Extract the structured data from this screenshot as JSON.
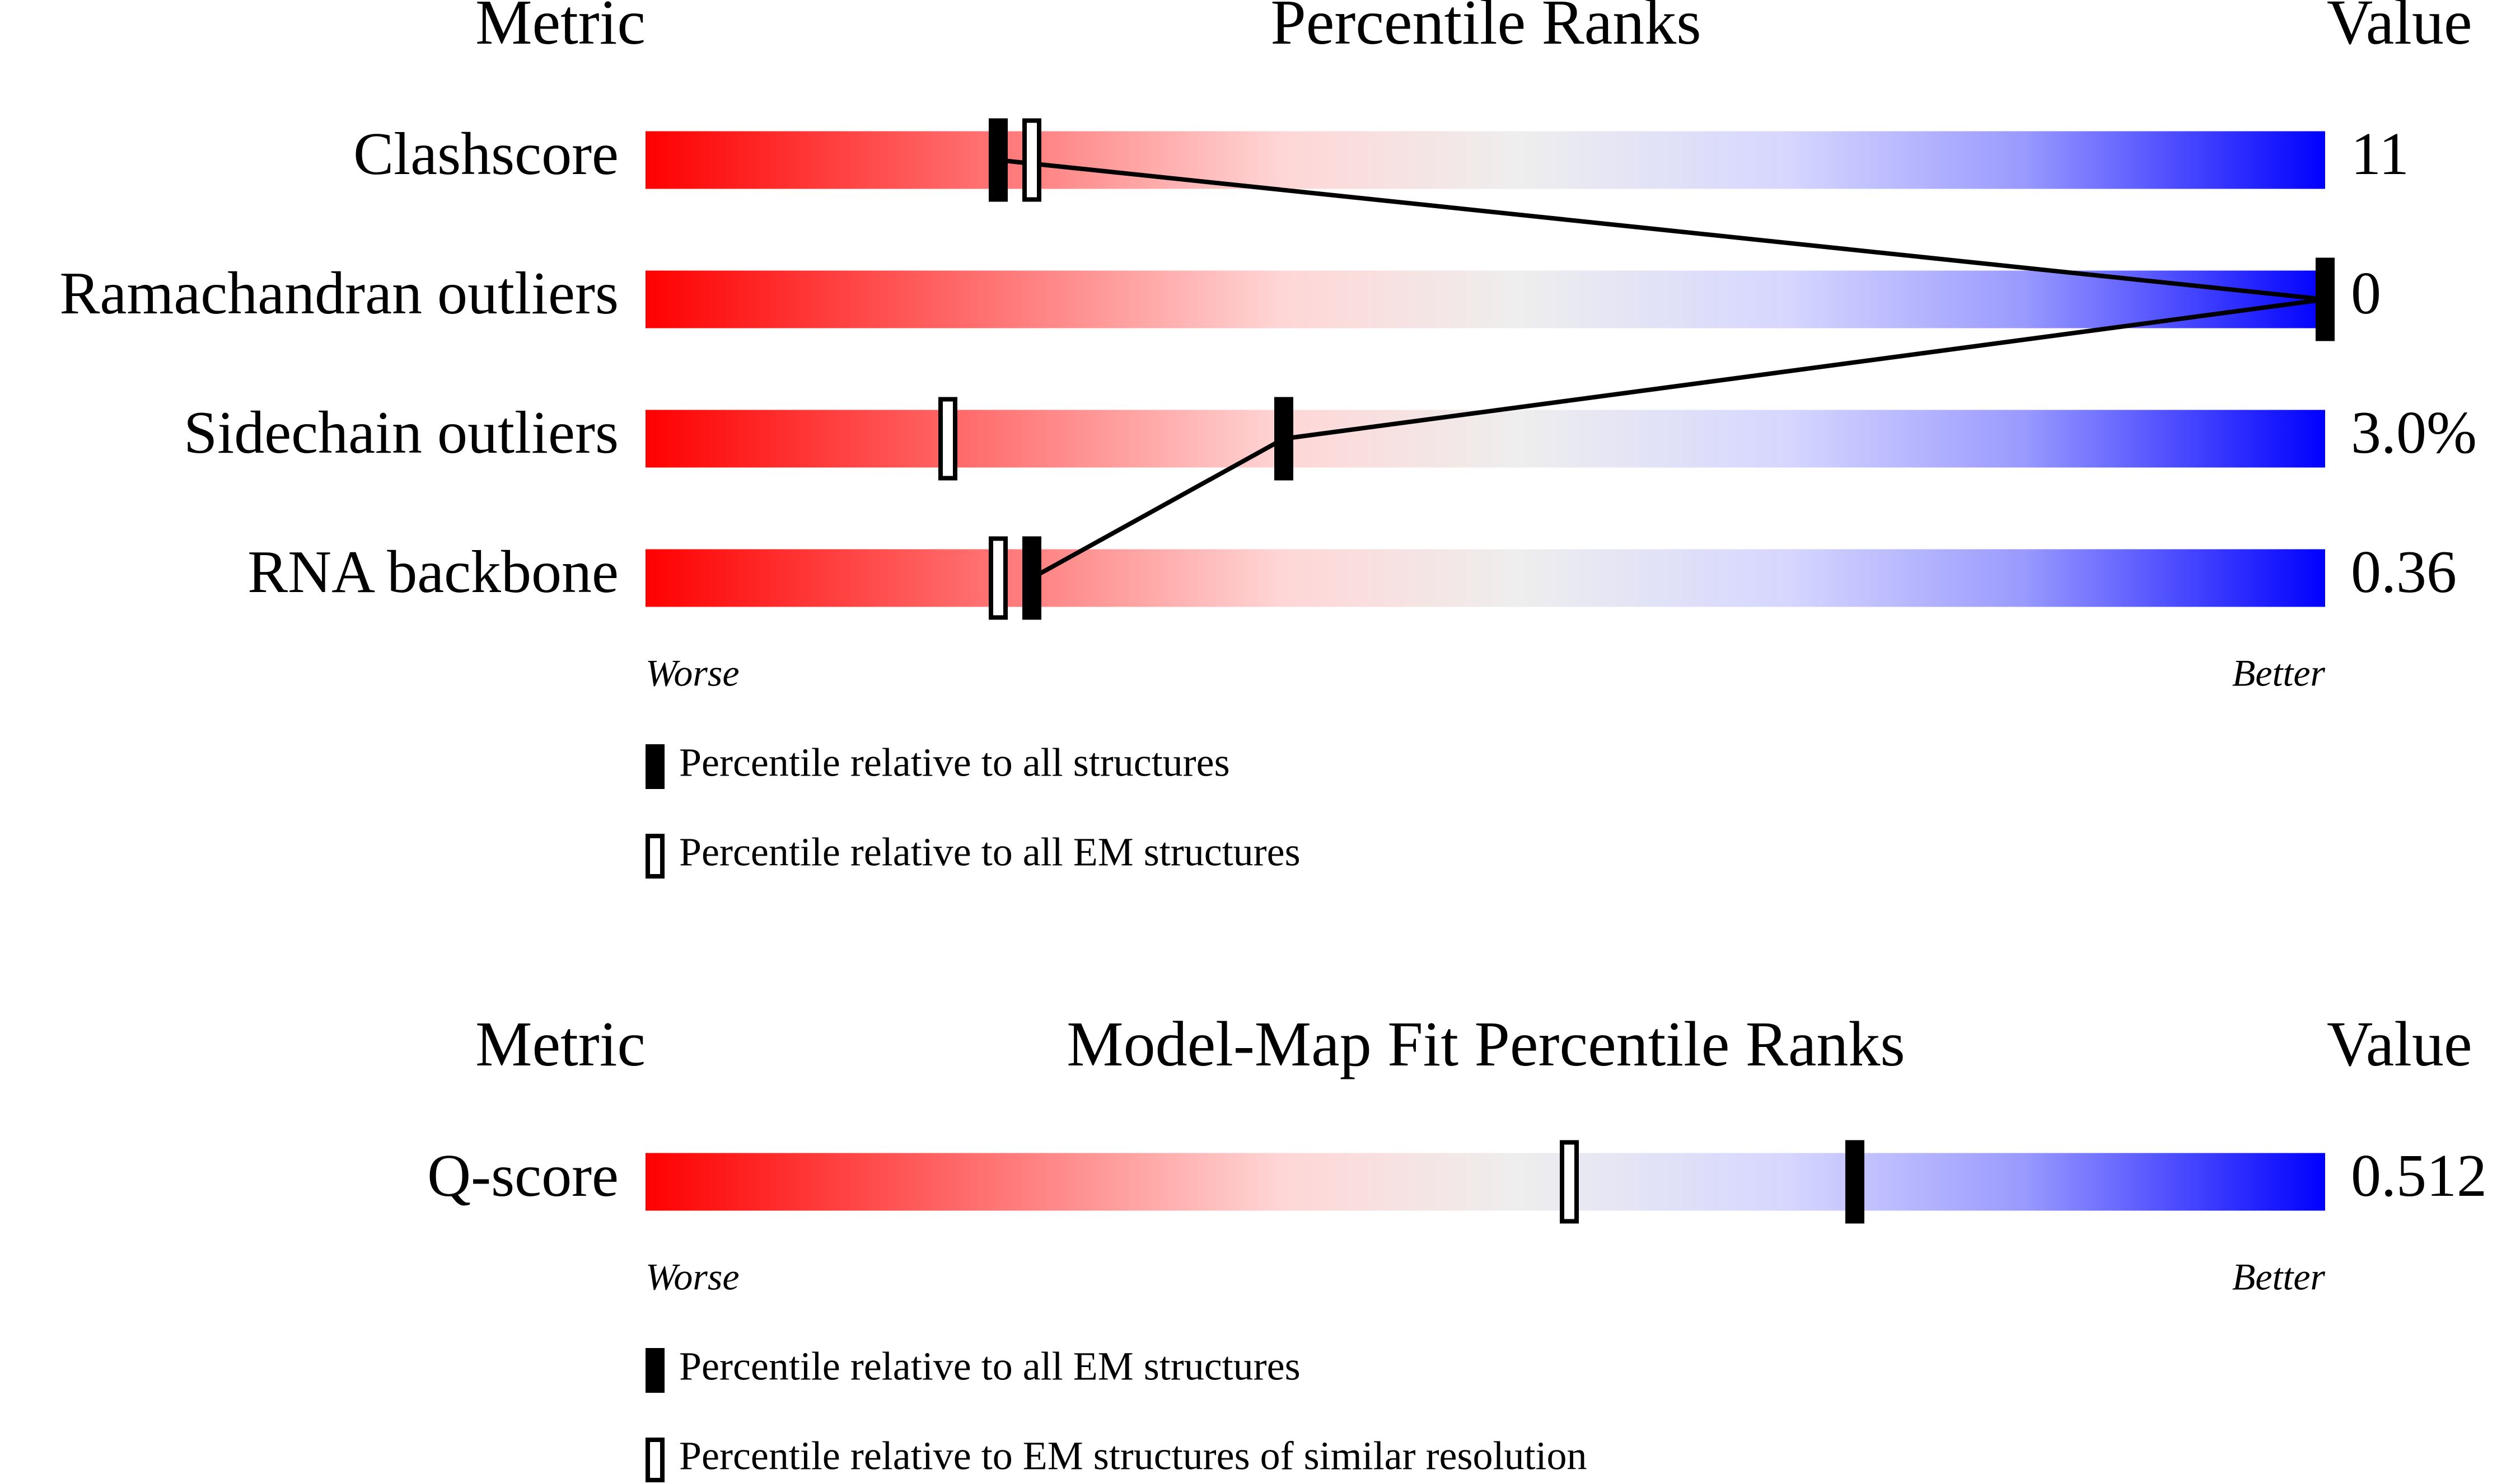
{
  "chart_data": [
    {
      "type": "slider",
      "headers": {
        "metric": "Metric",
        "title": "Percentile Ranks",
        "value": "Value"
      },
      "metrics": [
        "Clashscore",
        "Ramachandran outliers",
        "Sidechain outliers",
        "RNA backbone"
      ],
      "metric_values": [
        "11",
        "0",
        "3.0%",
        "0.36"
      ],
      "series": [
        {
          "name": "Percentile relative to all structures",
          "style": "filled",
          "color": "#000000",
          "values": [
            21,
            100,
            38,
            23
          ]
        },
        {
          "name": "Percentile relative to all EM structures",
          "style": "open",
          "color": "#000000",
          "values": [
            23,
            100,
            18,
            21
          ]
        }
      ],
      "connect": "filled",
      "xlim": [
        0,
        100
      ],
      "worse": "Worse",
      "better": "Better"
    },
    {
      "type": "slider",
      "headers": {
        "metric": "Metric",
        "title": "Model-Map Fit Percentile Ranks",
        "value": "Value"
      },
      "metrics": [
        "Q-score"
      ],
      "metric_values": [
        "0.512"
      ],
      "series": [
        {
          "name": "Percentile relative to all EM structures",
          "style": "filled",
          "color": "#000000",
          "values": [
            72
          ]
        },
        {
          "name": "Percentile relative to EM structures of similar resolution",
          "style": "open",
          "color": "#000000",
          "values": [
            55
          ]
        }
      ],
      "xlim": [
        0,
        100
      ],
      "worse": "Worse",
      "better": "Better"
    }
  ]
}
